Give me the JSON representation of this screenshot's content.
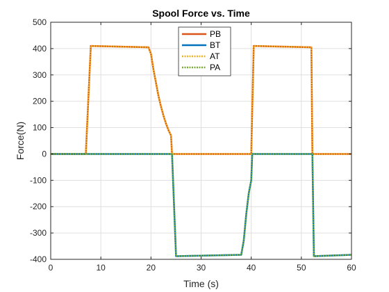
{
  "chart_data": {
    "type": "line",
    "title": "Spool Force vs. Time",
    "xlabel": "Time (s)",
    "ylabel": "Force(N)",
    "xlim": [
      0,
      60
    ],
    "ylim": [
      -400,
      500
    ],
    "xticks": [
      0,
      10,
      20,
      30,
      40,
      50,
      60
    ],
    "yticks": [
      -400,
      -300,
      -200,
      -100,
      0,
      100,
      200,
      300,
      400,
      500
    ],
    "xtick_labels": [
      "0",
      "10",
      "20",
      "30",
      "40",
      "50",
      "60"
    ],
    "ytick_labels": [
      "-400",
      "-300",
      "-200",
      "-100",
      "0",
      "100",
      "200",
      "300",
      "400",
      "500"
    ],
    "grid": true,
    "legend_position": "top-center",
    "series": [
      {
        "name": "PB",
        "color": "#D95319",
        "style": "solid",
        "width": 2.5,
        "x": [
          0,
          7,
          8,
          19.5,
          20,
          20.5,
          21,
          21.5,
          22,
          22.5,
          23,
          23.5,
          24,
          24.2,
          40,
          40.5,
          52,
          52.2,
          60
        ],
        "y": [
          0,
          0,
          410,
          405,
          380,
          320,
          270,
          220,
          180,
          145,
          115,
          90,
          70,
          0,
          0,
          410,
          405,
          0,
          0
        ]
      },
      {
        "name": "BT",
        "color": "#0072BD",
        "style": "solid",
        "width": 2.5,
        "x": [
          0,
          24.2,
          25,
          38,
          38.5,
          39,
          39.5,
          40,
          40.2,
          52.2,
          52.5,
          60
        ],
        "y": [
          0,
          0,
          -388,
          -383,
          -330,
          -230,
          -150,
          -100,
          0,
          0,
          -388,
          -383
        ]
      },
      {
        "name": "AT",
        "color": "#EDB120",
        "style": "dotted",
        "width": 2.5,
        "x": [
          0,
          7,
          8,
          19.5,
          20,
          20.5,
          21,
          21.5,
          22,
          22.5,
          23,
          23.5,
          24,
          24.2,
          40,
          40.5,
          52,
          52.2,
          60
        ],
        "y": [
          0,
          0,
          410,
          405,
          380,
          320,
          270,
          220,
          180,
          145,
          115,
          90,
          70,
          0,
          0,
          410,
          405,
          0,
          0
        ]
      },
      {
        "name": "PA",
        "color": "#77AC30",
        "style": "dotted",
        "width": 2.5,
        "x": [
          0,
          24.2,
          25,
          38,
          38.5,
          39,
          39.5,
          40,
          40.2,
          52.2,
          52.5,
          60
        ],
        "y": [
          0,
          0,
          -388,
          -383,
          -330,
          -230,
          -150,
          -100,
          0,
          0,
          -388,
          -383
        ]
      }
    ]
  }
}
